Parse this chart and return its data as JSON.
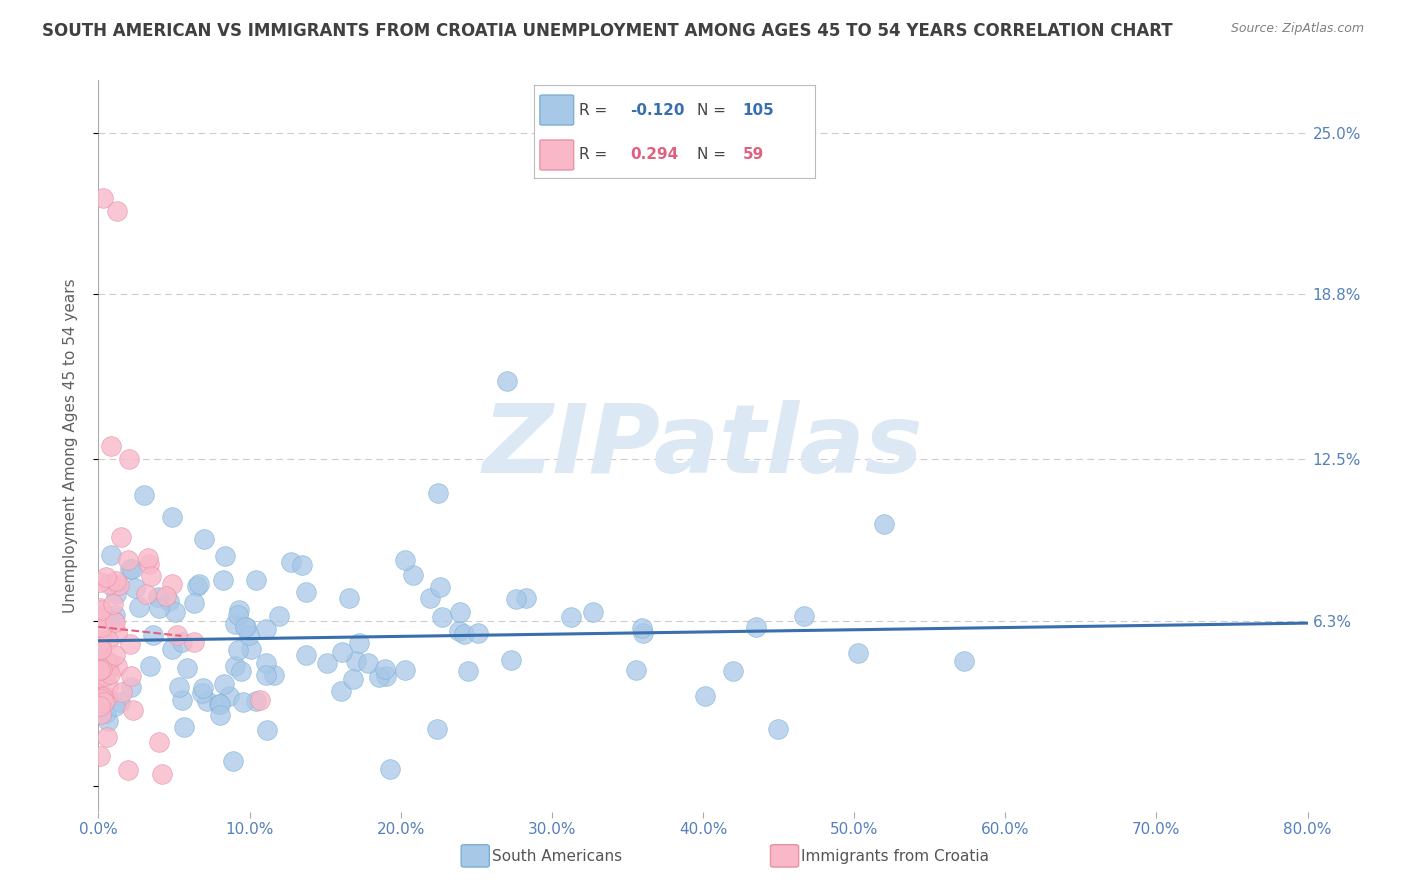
{
  "title": "SOUTH AMERICAN VS IMMIGRANTS FROM CROATIA UNEMPLOYMENT AMONG AGES 45 TO 54 YEARS CORRELATION CHART",
  "source": "Source: ZipAtlas.com",
  "ylabel": "Unemployment Among Ages 45 to 54 years",
  "xlim": [
    0.0,
    80.0
  ],
  "ylim": [
    -1.0,
    27.0
  ],
  "ytick_vals": [
    0.0,
    6.3,
    12.5,
    18.8,
    25.0
  ],
  "ytick_labels": [
    "",
    "6.3%",
    "12.5%",
    "18.8%",
    "25.0%"
  ],
  "xtick_vals": [
    0.0,
    10.0,
    20.0,
    30.0,
    40.0,
    50.0,
    60.0,
    70.0,
    80.0
  ],
  "xtick_labels": [
    "0.0%",
    "10.0%",
    "20.0%",
    "30.0%",
    "40.0%",
    "50.0%",
    "60.0%",
    "70.0%",
    "80.0%"
  ],
  "grid_color": "#cccccc",
  "background_color": "#ffffff",
  "series1_name": "South Americans",
  "series1_color": "#a8c8e8",
  "series1_edge_color": "#7bafd4",
  "series1_R": -0.12,
  "series1_N": 105,
  "series1_line_color": "#3a6fad",
  "series2_name": "Immigrants from Croatia",
  "series2_color": "#f8b8c8",
  "series2_edge_color": "#e890a8",
  "series2_R": 0.294,
  "series2_N": 59,
  "series2_line_color": "#e06080",
  "watermark_color": "#dce8f4",
  "title_color": "#404040",
  "source_color": "#808080",
  "tick_color": "#5580bb",
  "ylabel_color": "#606060",
  "legend_border_color": "#bbbbbb",
  "title_fontsize": 12,
  "axis_label_fontsize": 11,
  "tick_fontsize": 11,
  "legend_fontsize": 12
}
